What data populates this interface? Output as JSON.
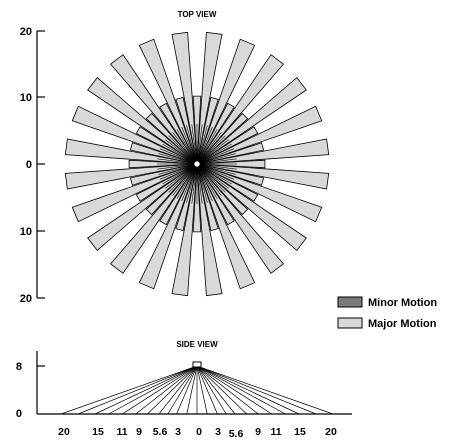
{
  "top_view": {
    "title": "TOP VIEW",
    "y_ticks": [
      "20",
      "10",
      "0",
      "10",
      "20"
    ],
    "inner_zone_colour": "#aaaaaa",
    "outer_zone_colour": "#d9d9d9"
  },
  "legend": {
    "items": [
      {
        "label": "Minor Motion",
        "color": "#7a7a7a"
      },
      {
        "label": "Major Motion",
        "color": "#d9d9d9"
      }
    ]
  },
  "side_view": {
    "title": "SIDE VIEW",
    "y_ticks": [
      "8",
      "0"
    ],
    "x_ticks": [
      "20",
      "15",
      "11",
      "9",
      "5.6",
      "3",
      "0",
      "3",
      "5.6",
      "9",
      "11",
      "15",
      "20"
    ]
  }
}
